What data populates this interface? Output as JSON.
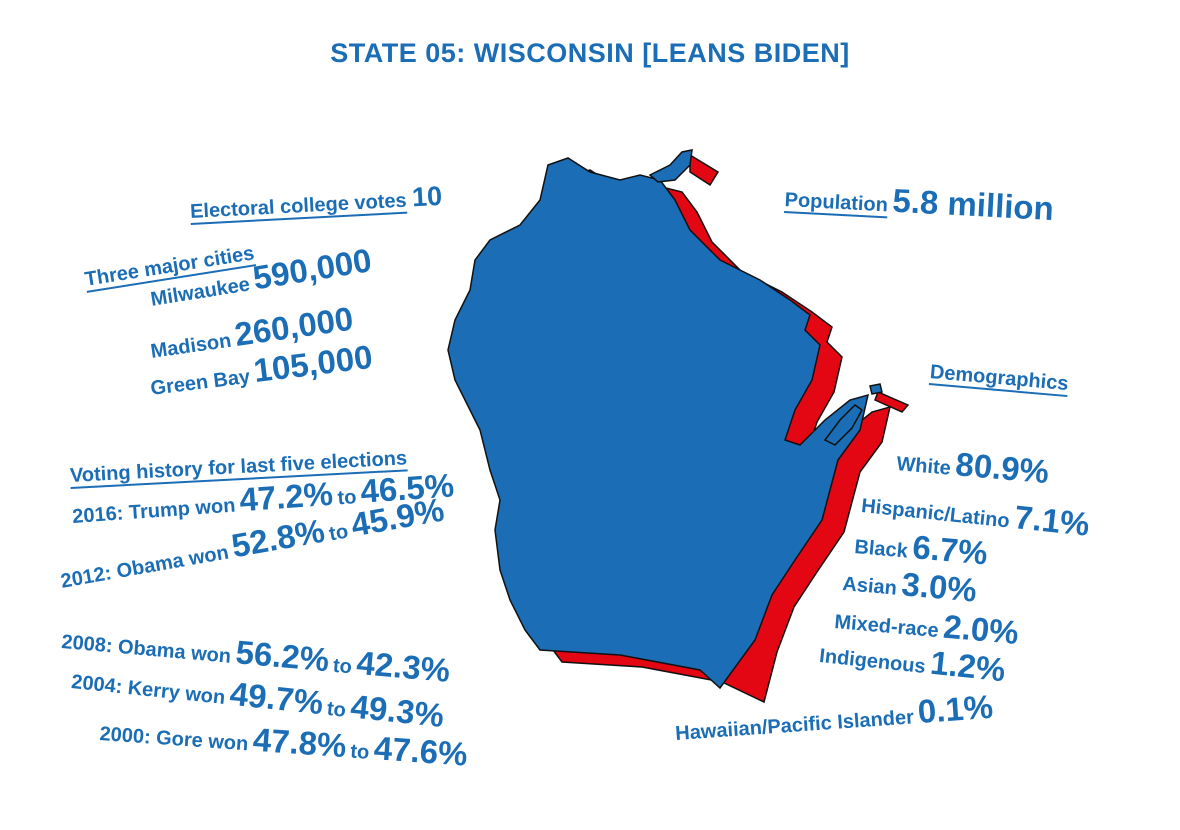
{
  "title": "STATE 05: WISCONSIN [LEANS BIDEN]",
  "electoral": {
    "label": "Electoral college votes",
    "value": "10"
  },
  "population": {
    "label": "Population",
    "value": "5.8 million"
  },
  "cities": {
    "heading": "Three major cities",
    "items": [
      {
        "name": "Milwaukee",
        "value": "590,000"
      },
      {
        "name": "Madison",
        "value": "260,000"
      },
      {
        "name": "Green Bay",
        "value": "105,000"
      }
    ]
  },
  "voting": {
    "heading": "Voting history for last five elections",
    "connector": "to",
    "items": [
      {
        "label": "2016: Trump won",
        "winner_pct": "47.2%",
        "loser_pct": "46.5%"
      },
      {
        "label": "2012: Obama won",
        "winner_pct": "52.8%",
        "loser_pct": "45.9%"
      },
      {
        "label": "2008: Obama won",
        "winner_pct": "56.2%",
        "loser_pct": "42.3%"
      },
      {
        "label": "2004: Kerry won",
        "winner_pct": "49.7%",
        "loser_pct": "49.3%"
      },
      {
        "label": "2000: Gore won",
        "winner_pct": "47.8%",
        "loser_pct": "47.6%"
      }
    ]
  },
  "demographics": {
    "heading": "Demographics",
    "items": [
      {
        "label": "White",
        "value": "80.9%"
      },
      {
        "label": "Hispanic/Latino",
        "value": "7.1%"
      },
      {
        "label": "Black",
        "value": "6.7%"
      },
      {
        "label": "Asian",
        "value": "3.0%"
      },
      {
        "label": "Mixed-race",
        "value": "2.0%"
      },
      {
        "label": "Indigenous",
        "value": "1.2%"
      },
      {
        "label": "Hawaiian/Pacific Islander",
        "value": "0.1%"
      }
    ]
  },
  "colors": {
    "text": "#1b6db5",
    "map_blue": "#1b6db5",
    "map_red": "#e30613",
    "outline": "#111111"
  },
  "map": {
    "state": "Wisconsin",
    "shape_icon": "wisconsin-state-shape"
  }
}
